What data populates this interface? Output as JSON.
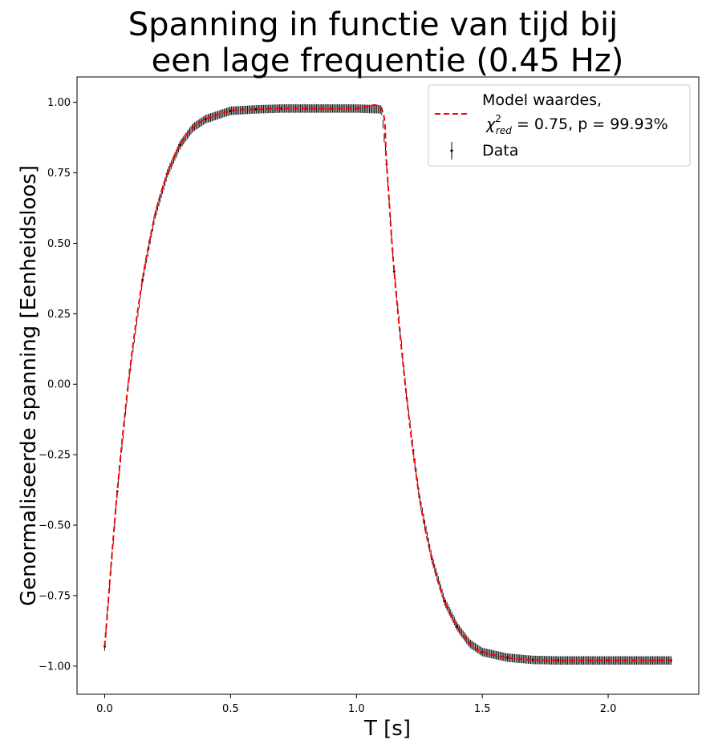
{
  "chart_data": {
    "type": "line",
    "title_lines": [
      "Spanning in functie van tijd bij",
      "een lage frequentie (0.45 Hz)"
    ],
    "xlabel": "T [s]",
    "ylabel": "Genormaliseerde spanning [Eenheidsloos]",
    "xlim": [
      -0.11,
      2.36
    ],
    "ylim": [
      -1.1,
      1.09
    ],
    "x_ticks": [
      0.0,
      0.5,
      1.0,
      1.5,
      2.0
    ],
    "x_tick_labels": [
      "0.0",
      "0.5",
      "1.0",
      "1.5",
      "2.0"
    ],
    "y_ticks": [
      1.0,
      0.75,
      0.5,
      0.25,
      0.0,
      -0.25,
      -0.5,
      -0.75,
      -1.0
    ],
    "y_tick_labels": [
      "1.00",
      "0.75",
      "0.50",
      "0.25",
      "0.00",
      "−0.25",
      "−0.50",
      "−0.75",
      "−1.00"
    ],
    "grid": false,
    "legend_position": "top-right",
    "legend": {
      "model_line1": "Model waardes,",
      "model_chi": "χ",
      "model_chi_sup": "2",
      "model_chi_sub": "red",
      "model_rest": " = 0.75, p = 99.93%",
      "data": "Data"
    },
    "colors": {
      "model": "#ff0000",
      "data": "#000000"
    },
    "series": [
      {
        "name": "Model waardes",
        "style": "dashed",
        "x": [
          0.0,
          0.05,
          0.1,
          0.15,
          0.2,
          0.25,
          0.3,
          0.35,
          0.4,
          0.5,
          0.6,
          0.7,
          0.8,
          0.9,
          1.0,
          1.1,
          1.12,
          1.15,
          1.2,
          1.25,
          1.3,
          1.35,
          1.4,
          1.45,
          1.5,
          1.6,
          1.7,
          1.8,
          1.9,
          2.0,
          2.1,
          2.25
        ],
        "y": [
          -0.93,
          -0.38,
          0.05,
          0.37,
          0.6,
          0.75,
          0.85,
          0.91,
          0.94,
          0.97,
          0.975,
          0.978,
          0.978,
          0.978,
          0.978,
          0.975,
          0.78,
          0.4,
          -0.05,
          -0.4,
          -0.62,
          -0.77,
          -0.86,
          -0.92,
          -0.95,
          -0.97,
          -0.978,
          -0.98,
          -0.98,
          -0.98,
          -0.98,
          -0.98
        ]
      },
      {
        "name": "Data",
        "style": "errorbar",
        "x": [
          0.0,
          0.05,
          0.1,
          0.15,
          0.2,
          0.25,
          0.3,
          0.35,
          0.4,
          0.5,
          0.6,
          0.7,
          0.8,
          0.9,
          1.0,
          1.1,
          1.12,
          1.15,
          1.2,
          1.25,
          1.3,
          1.35,
          1.4,
          1.45,
          1.5,
          1.6,
          1.7,
          1.8,
          1.9,
          2.0,
          2.1,
          2.25
        ],
        "y": [
          -0.93,
          -0.38,
          0.05,
          0.37,
          0.6,
          0.75,
          0.85,
          0.91,
          0.94,
          0.97,
          0.975,
          0.978,
          0.978,
          0.978,
          0.978,
          0.975,
          0.78,
          0.4,
          -0.05,
          -0.4,
          -0.62,
          -0.77,
          -0.86,
          -0.92,
          -0.95,
          -0.97,
          -0.978,
          -0.98,
          -0.98,
          -0.98,
          -0.98,
          -0.98
        ],
        "yerr": 0.015
      }
    ]
  }
}
